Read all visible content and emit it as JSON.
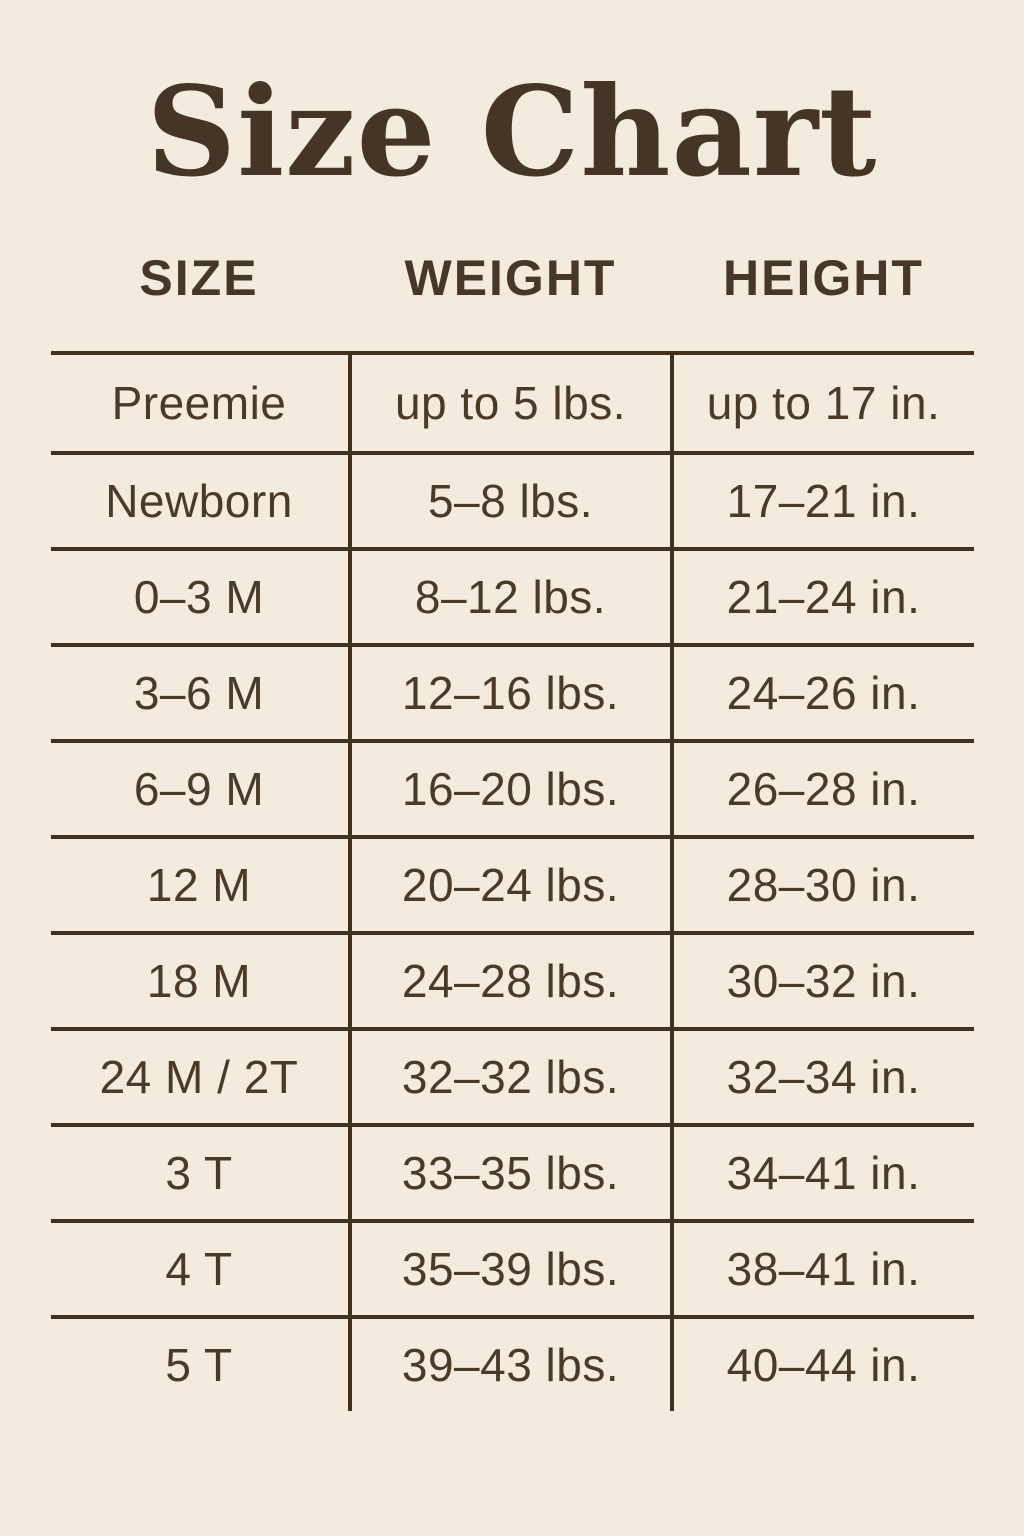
{
  "chart_data": {
    "type": "table",
    "title": "Size Chart",
    "columns": [
      "SIZE",
      "WEIGHT",
      "HEIGHT"
    ],
    "rows": [
      [
        "Preemie",
        "up to 5 lbs.",
        "up to 17 in."
      ],
      [
        "Newborn",
        "5–8 lbs.",
        "17–21 in."
      ],
      [
        "0–3 M",
        "8–12 lbs.",
        "21–24 in."
      ],
      [
        "3–6 M",
        "12–16 lbs.",
        "24–26 in."
      ],
      [
        "6–9 M",
        "16–20 lbs.",
        "26–28 in."
      ],
      [
        "12 M",
        "20–24 lbs.",
        "28–30 in."
      ],
      [
        "18 M",
        "24–28 lbs.",
        "30–32 in."
      ],
      [
        "24 M / 2T",
        "32–32 lbs.",
        "32–34 in."
      ],
      [
        "3 T",
        "33–35 lbs.",
        "34–41 in."
      ],
      [
        "4 T",
        "35–39 lbs.",
        "38–41 in."
      ],
      [
        "5 T",
        "39–43 lbs.",
        "40–44 in."
      ]
    ]
  },
  "colors": {
    "background": "#f2ebde",
    "text": "#4a3b29",
    "title_text": "#443525",
    "line": "#40321f"
  }
}
